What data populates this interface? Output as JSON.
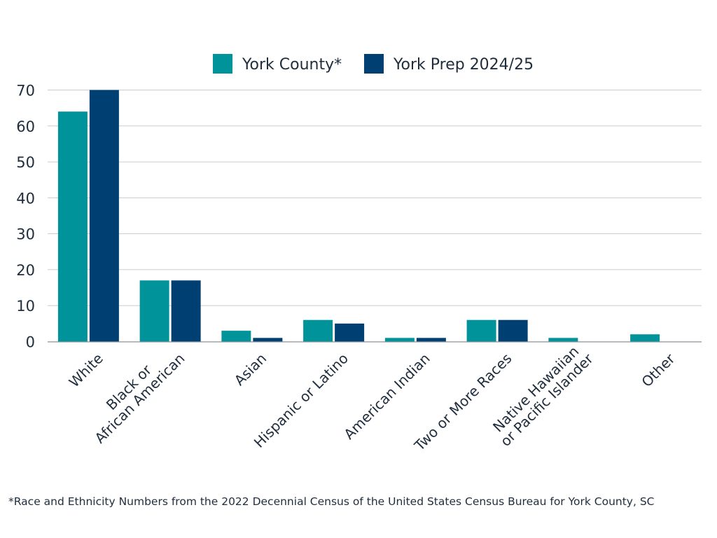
{
  "chart_data": {
    "type": "bar",
    "categories": [
      [
        "White"
      ],
      [
        "Black or",
        "African American"
      ],
      [
        "Asian"
      ],
      [
        "Hispanic or Latino"
      ],
      [
        "American Indian"
      ],
      [
        "Two or More Races"
      ],
      [
        "Native Hawaiian",
        "or Pacific Islander"
      ],
      [
        "Other"
      ]
    ],
    "series": [
      {
        "name": "York County*",
        "color": "#00939a",
        "values": [
          64,
          17,
          3,
          6,
          1,
          6,
          1,
          2
        ]
      },
      {
        "name": "York Prep 2024/25",
        "color": "#003f72",
        "values": [
          70,
          17,
          1,
          5,
          1,
          6,
          0,
          0
        ]
      }
    ],
    "ylim": [
      0,
      70
    ],
    "yticks": [
      0,
      10,
      20,
      30,
      40,
      50,
      60,
      70
    ],
    "grid": true,
    "legend_position": "top-center",
    "xlabel": "",
    "ylabel": "",
    "title": ""
  },
  "footnote": "*Race and Ethnicity Numbers from the 2022 Decennial Census of the United States Census Bureau for York County, SC"
}
